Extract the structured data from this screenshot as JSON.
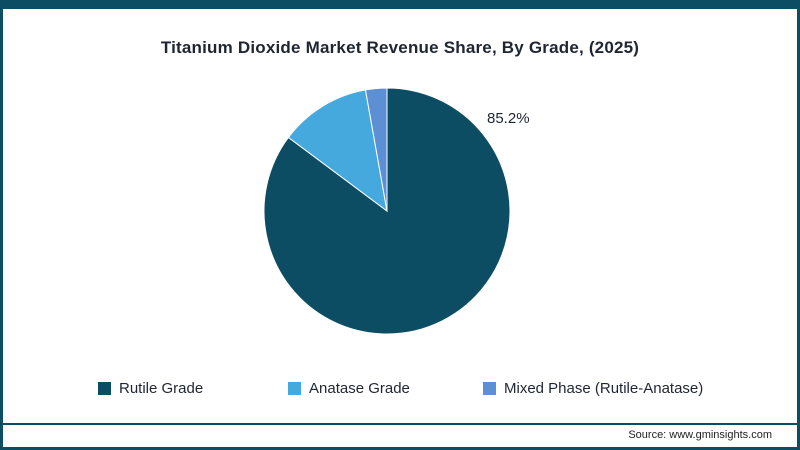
{
  "title": "Titanium Dioxide Market Revenue Share, By Grade, (2025)",
  "footer": {
    "source": "Source: www.gminsights.com"
  },
  "colors": {
    "frame": "#0d4d63",
    "text": "#1f2633"
  },
  "chart_data": {
    "type": "pie",
    "title": "Titanium Dioxide Market Revenue Share, By Grade, (2025)",
    "labels": [
      "Rutile Grade",
      "Anatase Grade",
      "Mixed Phase (Rutile-Anatase)"
    ],
    "values": [
      85.2,
      12.0,
      2.8
    ],
    "colors": [
      "#0d4d63",
      "#45a9de",
      "#5d8fd4"
    ],
    "start_angle": "12-o'clock",
    "direction": "clockwise",
    "legend_position": "bottom",
    "annotations": [
      {
        "text": "85.2%",
        "slice": "Rutile Grade",
        "position": "top-right-outside"
      }
    ]
  }
}
